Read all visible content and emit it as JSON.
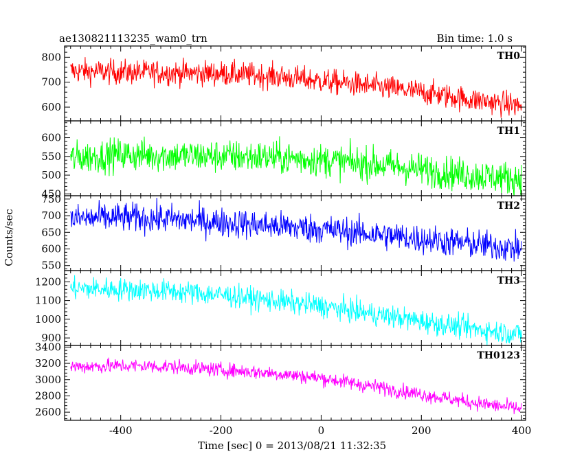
{
  "header": {
    "left": "ae130821113235_wam0_trn",
    "right": "Bin time: 1.0 s"
  },
  "chart_data": {
    "type": "line",
    "title": "ae130821113235_wam0_trn",
    "subtitle": "Bin time: 1.0 s",
    "xlabel": "Time [sec] 0 = 2013/08/21 11:32:35",
    "ylabel": "Counts/sec",
    "xlim": [
      -512,
      408
    ],
    "x_ticks": [
      -400,
      -200,
      0,
      200,
      400
    ],
    "x_range_data": [
      -500,
      400
    ],
    "bin_seconds": 1.0,
    "grid": false,
    "series": [
      {
        "name": "TH0",
        "color": "#ff0000",
        "ylim": [
          545,
          845
        ],
        "y_ticks": [
          600,
          700,
          800
        ],
        "trend_x": [
          -500,
          -400,
          -300,
          -200,
          -100,
          0,
          100,
          200,
          300,
          400
        ],
        "trend_y": [
          745,
          740,
          738,
          735,
          725,
          705,
          685,
          660,
          630,
          605
        ],
        "noise_amplitude": 45
      },
      {
        "name": "TH1",
        "color": "#00ff00",
        "ylim": [
          445,
          645
        ],
        "y_ticks": [
          450,
          500,
          550,
          600
        ],
        "trend_x": [
          -500,
          -400,
          -300,
          -200,
          -100,
          0,
          100,
          200,
          300,
          400
        ],
        "trend_y": [
          545,
          555,
          552,
          550,
          548,
          540,
          530,
          515,
          500,
          490
        ],
        "noise_amplitude": 40
      },
      {
        "name": "TH2",
        "color": "#0000ff",
        "ylim": [
          535,
          760
        ],
        "y_ticks": [
          550,
          600,
          650,
          700,
          750
        ],
        "trend_x": [
          -500,
          -400,
          -300,
          -200,
          -100,
          0,
          100,
          200,
          300,
          400
        ],
        "trend_y": [
          690,
          695,
          690,
          680,
          670,
          660,
          645,
          630,
          615,
          600
        ],
        "noise_amplitude": 40
      },
      {
        "name": "TH3",
        "color": "#00ffff",
        "ylim": [
          860,
          1260
        ],
        "y_ticks": [
          900,
          1000,
          1100,
          1200
        ],
        "trend_x": [
          -500,
          -400,
          -300,
          -200,
          -100,
          0,
          100,
          200,
          300,
          400
        ],
        "trend_y": [
          1165,
          1160,
          1150,
          1130,
          1100,
          1070,
          1030,
          990,
          950,
          920
        ],
        "noise_amplitude": 55
      },
      {
        "name": "TH0123",
        "color": "#ff00ff",
        "ylim": [
          2500,
          3420
        ],
        "y_ticks": [
          2600,
          2800,
          3000,
          3200,
          3400
        ],
        "trend_x": [
          -500,
          -400,
          -300,
          -200,
          -100,
          0,
          100,
          200,
          300,
          400
        ],
        "trend_y": [
          3160,
          3170,
          3160,
          3120,
          3080,
          3020,
          2920,
          2820,
          2720,
          2640
        ],
        "noise_amplitude": 80
      }
    ]
  }
}
